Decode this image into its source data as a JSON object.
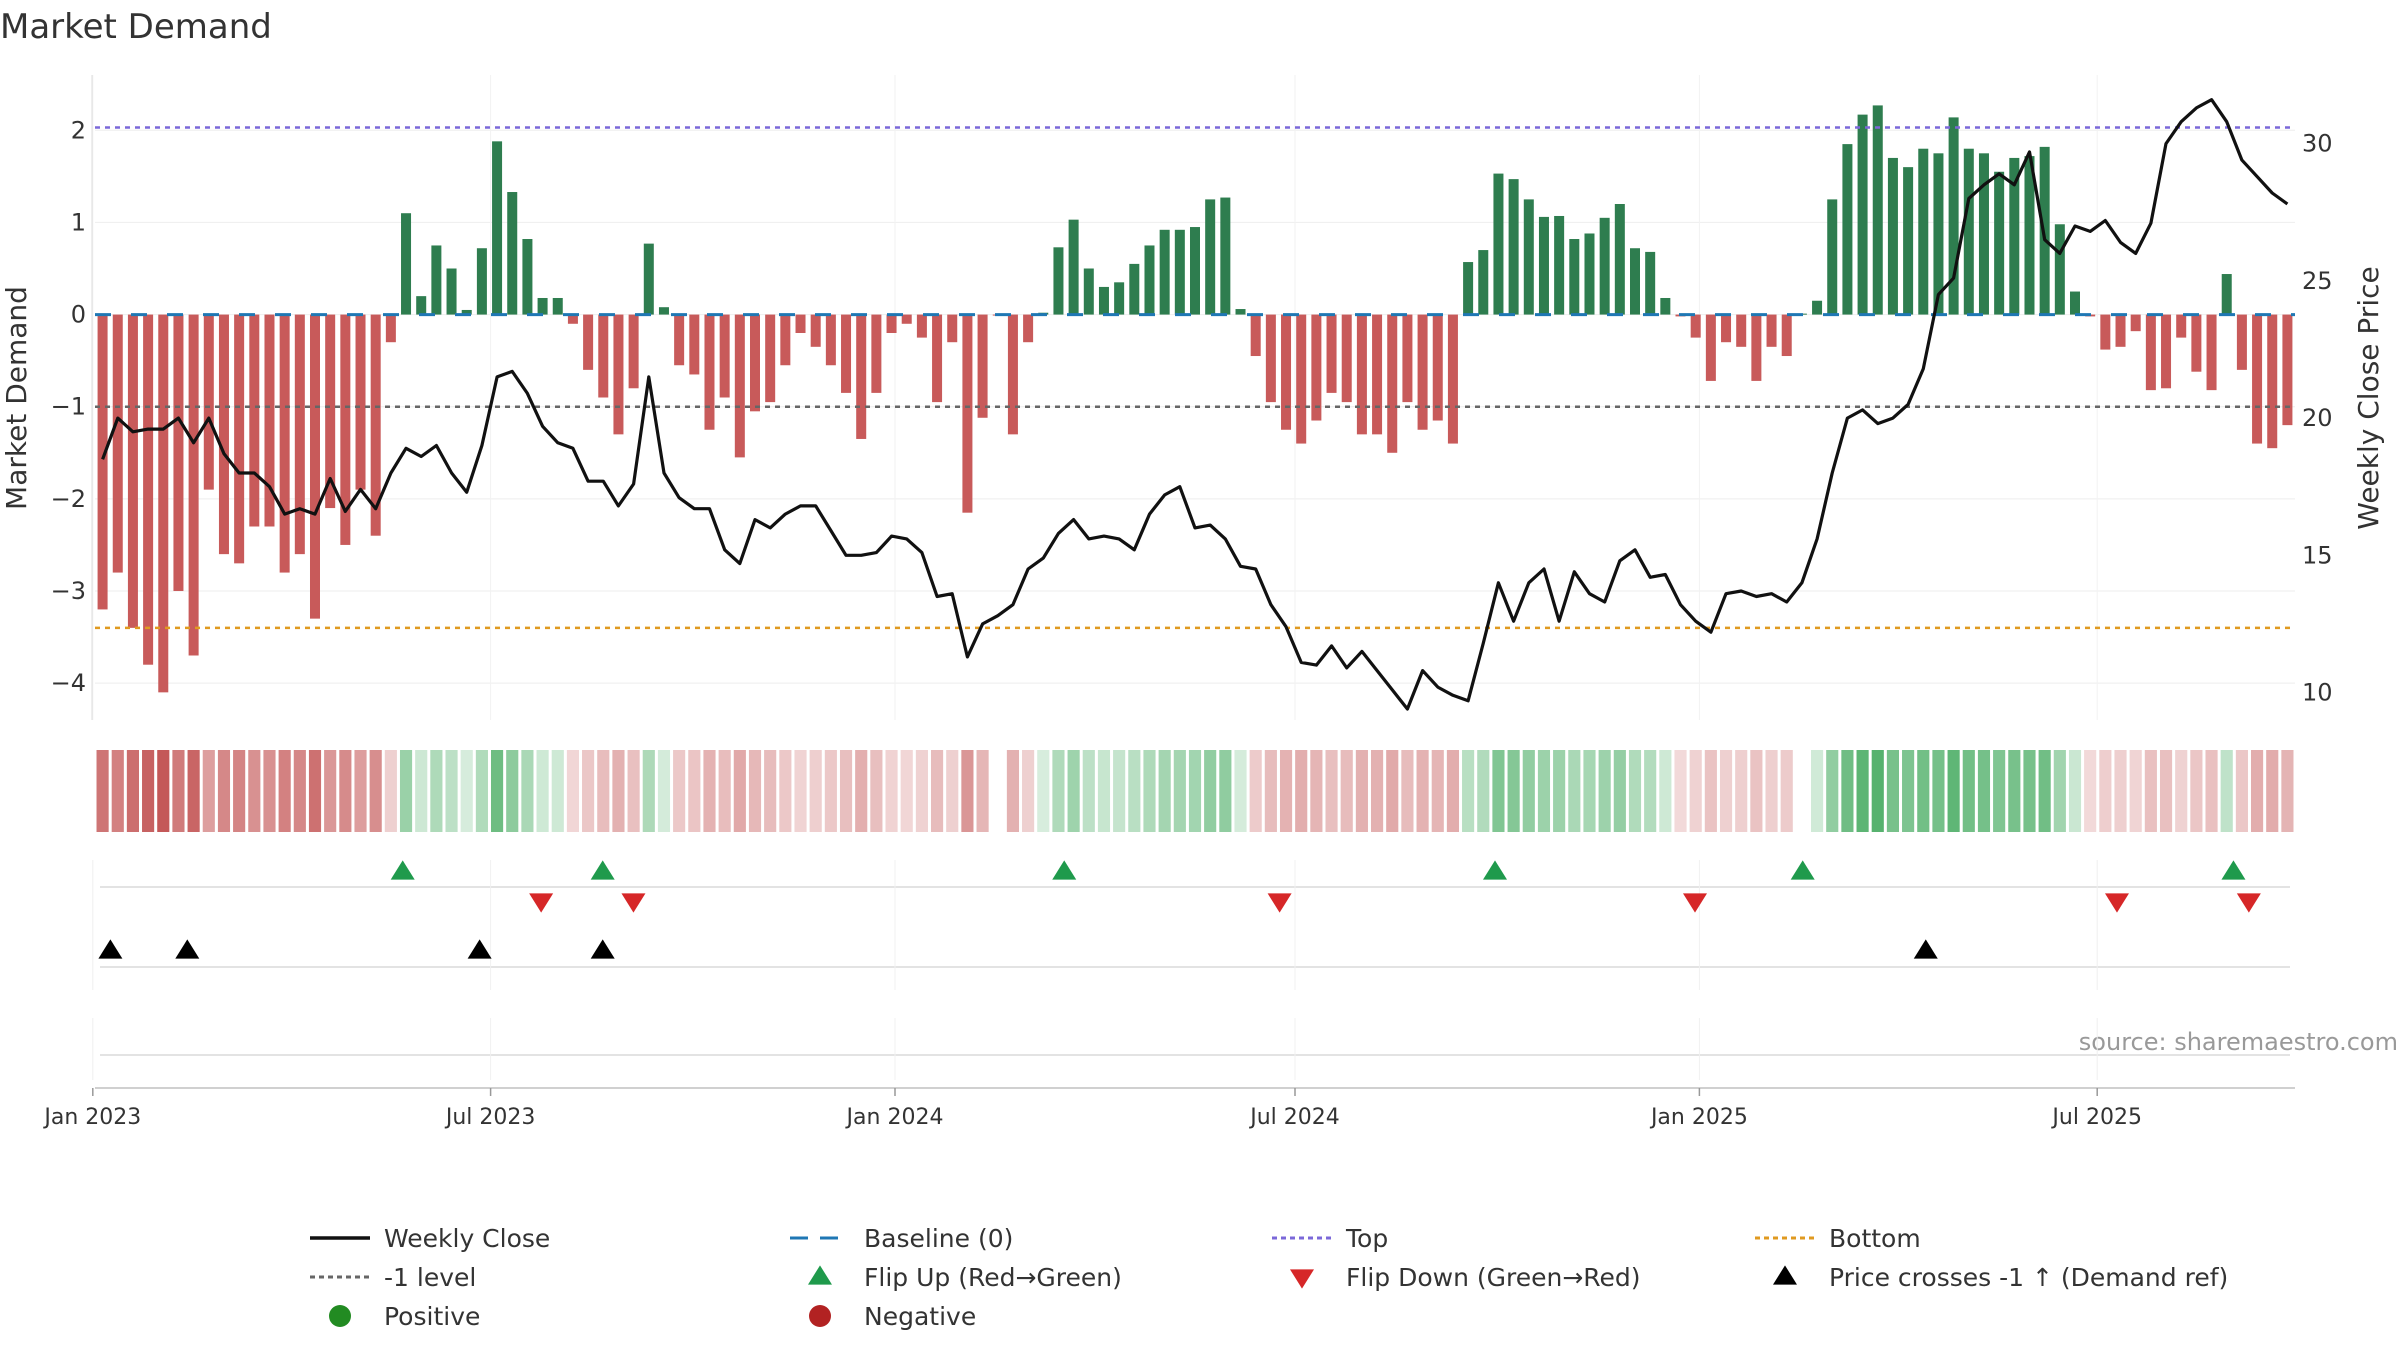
{
  "chart_data": {
    "type": "bar",
    "title": "Market Demand",
    "ylabel_left": "Market Demand",
    "ylabel_right": "Weekly Close Price",
    "source": "source: sharemaestro.com",
    "left_ylim": [
      -4.4,
      2.6
    ],
    "right_ylim": [
      9,
      32.5
    ],
    "left_ticks": [
      2,
      1,
      0,
      -1,
      -2,
      -3,
      -4
    ],
    "left_tick_labels": [
      "2",
      "1",
      "0",
      "−1",
      "−2",
      "−3",
      "−4"
    ],
    "right_ticks": [
      30,
      25,
      20,
      15,
      10
    ],
    "right_tick_labels": [
      "30",
      "25",
      "20",
      "15",
      "10"
    ],
    "reference_lines": {
      "top": 2.03,
      "bottom": -3.4,
      "minus_one": -1.0,
      "baseline": 0
    },
    "x_start": "2023-01-02",
    "x_end": "2025-09-29",
    "x_ticks": [
      {
        "date": "2023-01-01",
        "label": "Jan 2023"
      },
      {
        "date": "2023-07-01",
        "label": "Jul 2023"
      },
      {
        "date": "2024-01-01",
        "label": "Jan 2024"
      },
      {
        "date": "2024-07-01",
        "label": "Jul 2024"
      },
      {
        "date": "2025-01-01",
        "label": "Jan 2025"
      },
      {
        "date": "2025-07-01",
        "label": "Jul 2025"
      }
    ],
    "demand": [
      -3.2,
      -2.8,
      -3.4,
      -3.8,
      -4.1,
      -3.0,
      -3.7,
      -1.9,
      -2.6,
      -2.7,
      -2.3,
      -2.3,
      -2.8,
      -2.6,
      -3.3,
      -2.1,
      -2.5,
      -1.9,
      -2.4,
      -0.3,
      1.1,
      0.2,
      0.75,
      0.5,
      0.05,
      0.72,
      1.88,
      1.33,
      0.82,
      0.18,
      0.18,
      -0.1,
      -0.6,
      -0.9,
      -1.3,
      -0.8,
      0.77,
      0.08,
      -0.55,
      -0.65,
      -1.25,
      -0.9,
      -1.55,
      -1.05,
      -0.95,
      -0.55,
      -0.2,
      -0.35,
      -0.55,
      -0.85,
      -1.35,
      -0.85,
      -0.2,
      -0.1,
      -0.25,
      -0.95,
      -0.3,
      -2.15,
      -1.12,
      -0.01,
      -1.3,
      -0.3,
      0.02,
      0.73,
      1.03,
      0.5,
      0.3,
      0.35,
      0.55,
      0.75,
      0.92,
      0.92,
      0.95,
      1.25,
      1.27,
      0.06,
      -0.45,
      -0.95,
      -1.25,
      -1.4,
      -1.15,
      -0.85,
      -0.95,
      -1.3,
      -1.3,
      -1.5,
      -0.95,
      -1.25,
      -1.15,
      -1.4,
      0.57,
      0.7,
      1.53,
      1.47,
      1.25,
      1.06,
      1.07,
      0.82,
      0.88,
      1.05,
      1.2,
      0.72,
      0.68,
      0.18,
      -0.02,
      -0.25,
      -0.72,
      -0.3,
      -0.35,
      -0.72,
      -0.35,
      -0.45,
      0.01,
      0.15,
      1.25,
      1.85,
      2.17,
      2.27,
      1.7,
      1.6,
      1.8,
      1.75,
      2.14,
      1.8,
      1.75,
      1.55,
      1.7,
      1.72,
      1.82,
      0.98,
      0.25,
      -0.02,
      -0.38,
      -0.35,
      -0.18,
      -0.82,
      -0.8,
      -0.25,
      -0.62,
      -0.82,
      0.44,
      -0.6,
      -1.4,
      -1.45,
      -1.2
    ],
    "close": [
      18.5,
      20.0,
      19.5,
      19.6,
      19.6,
      20.0,
      19.1,
      20.0,
      18.7,
      18.0,
      18.0,
      17.5,
      16.5,
      16.7,
      16.5,
      17.8,
      16.6,
      17.4,
      16.7,
      18.0,
      18.9,
      18.6,
      19.0,
      18.0,
      17.3,
      19.0,
      21.5,
      21.7,
      20.9,
      19.7,
      19.1,
      18.9,
      17.7,
      17.7,
      16.8,
      17.6,
      21.5,
      18.0,
      17.1,
      16.7,
      16.7,
      15.2,
      14.7,
      16.3,
      16.0,
      16.5,
      16.8,
      16.8,
      15.9,
      15.0,
      15.0,
      15.1,
      15.7,
      15.6,
      15.1,
      13.5,
      13.6,
      11.3,
      12.5,
      12.8,
      13.2,
      14.5,
      14.9,
      15.8,
      16.3,
      15.6,
      15.7,
      15.6,
      15.2,
      16.5,
      17.2,
      17.5,
      16.0,
      16.1,
      15.6,
      14.6,
      14.5,
      13.2,
      12.4,
      11.1,
      11.0,
      11.7,
      10.9,
      11.5,
      10.8,
      10.1,
      9.4,
      10.8,
      10.2,
      9.9,
      9.7,
      11.8,
      14.0,
      12.6,
      14.0,
      14.5,
      12.6,
      14.4,
      13.6,
      13.3,
      14.8,
      15.2,
      14.2,
      14.3,
      13.2,
      12.6,
      12.2,
      13.6,
      13.7,
      13.5,
      13.6,
      13.3,
      14.0,
      15.6,
      18.0,
      20.0,
      20.3,
      19.8,
      20.0,
      20.5,
      21.8,
      24.5,
      25.1,
      28.0,
      28.5,
      28.9,
      28.5,
      29.7,
      26.5,
      26.0,
      27.0,
      26.8,
      27.2,
      26.4,
      26.0,
      27.1,
      30.0,
      30.8,
      31.3,
      31.6,
      30.8,
      29.4,
      28.8,
      28.2,
      27.8
    ],
    "flip_up_dates": [
      "2023-05-22",
      "2023-08-21",
      "2024-03-18",
      "2024-09-30",
      "2025-02-17",
      "2025-09-01"
    ],
    "flip_down_dates": [
      "2023-07-24",
      "2023-09-04",
      "2024-06-24",
      "2024-12-30",
      "2025-07-10",
      "2025-09-08"
    ],
    "price_cross_dates": [
      "2023-01-09",
      "2023-02-13",
      "2023-06-26",
      "2023-08-21",
      "2025-04-14"
    ],
    "colors": {
      "positive_bar": "#2e7d4f",
      "negative_bar": "#c85a5a",
      "close_line": "#111111",
      "baseline": "#1f77b4",
      "top_line": "#7b68d9",
      "bottom_line": "#e09a20",
      "minus_one_line": "#666666",
      "flip_up": "#1f9a4c",
      "flip_down": "#d62728",
      "cross": "#000000",
      "positive_dot": "#228b22",
      "negative_dot": "#b22222"
    },
    "legend": [
      {
        "label": "Weekly Close",
        "key": "line-black"
      },
      {
        "label": "Baseline (0)",
        "key": "dash-blue"
      },
      {
        "label": "Top",
        "key": "dot-purple"
      },
      {
        "label": "Bottom",
        "key": "dot-orange"
      },
      {
        "label": "-1 level",
        "key": "dot-gray"
      },
      {
        "label": "Flip Up (Red→Green)",
        "key": "tri-up-green"
      },
      {
        "label": "Flip Down (Green→Red)",
        "key": "tri-down-red"
      },
      {
        "label": "Price crosses -1 ↑ (Demand ref)",
        "key": "tri-up-black"
      },
      {
        "label": "Positive",
        "key": "dot-green"
      },
      {
        "label": "Negative",
        "key": "dot-red"
      }
    ]
  }
}
